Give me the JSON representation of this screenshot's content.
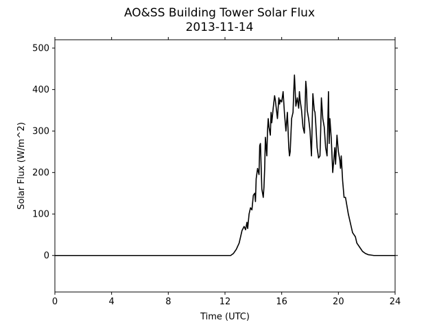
{
  "chart_data": {
    "type": "line",
    "title": "AO&SS Building Tower Solar Flux",
    "subtitle": "2013-11-14",
    "xlabel": "Time (UTC)",
    "ylabel": "Solar Flux (W/m^2)",
    "xlim": [
      0,
      24
    ],
    "ylim": [
      -88,
      520
    ],
    "xticks": [
      0,
      4,
      8,
      12,
      16,
      20,
      24
    ],
    "yticks": [
      0,
      100,
      200,
      300,
      400,
      500
    ],
    "grid": false,
    "legend": "none",
    "line_color": "#000000",
    "series": [
      {
        "x": [
          0,
          12.4,
          12.6,
          12.8,
          13.0,
          13.2,
          13.35,
          13.45,
          13.55,
          13.6,
          13.7,
          13.8,
          13.9,
          14.0,
          14.1,
          14.15,
          14.2,
          14.3,
          14.4,
          14.45,
          14.5,
          14.6,
          14.7,
          14.75,
          14.8,
          14.85,
          14.95,
          15.0,
          15.05,
          15.1,
          15.2,
          15.25,
          15.3,
          15.4,
          15.5,
          15.55,
          15.6,
          15.7,
          15.8,
          15.85,
          15.9,
          16.0,
          16.1,
          16.2,
          16.3,
          16.4,
          16.5,
          16.55,
          16.6,
          16.7,
          16.8,
          16.85,
          16.9,
          17.0,
          17.1,
          17.2,
          17.25,
          17.3,
          17.4,
          17.5,
          17.6,
          17.7,
          17.75,
          17.8,
          17.9,
          18.0,
          18.1,
          18.2,
          18.3,
          18.35,
          18.4,
          18.5,
          18.6,
          18.7,
          18.75,
          18.8,
          18.9,
          19.0,
          19.1,
          19.2,
          19.3,
          19.35,
          19.4,
          19.5,
          19.6,
          19.7,
          19.75,
          19.8,
          19.9,
          20.0,
          20.1,
          20.15,
          20.2,
          20.3,
          20.4,
          20.5,
          20.6,
          20.7,
          20.8,
          20.9,
          21.0,
          21.1,
          21.2,
          21.3,
          21.5,
          21.7,
          21.9,
          22.1,
          22.3,
          22.5,
          22.6,
          22.8,
          23.0,
          24.0
        ],
        "y": [
          0,
          0,
          5,
          15,
          30,
          60,
          70,
          62,
          80,
          65,
          100,
          115,
          110,
          145,
          150,
          130,
          185,
          210,
          195,
          265,
          270,
          160,
          140,
          165,
          210,
          285,
          240,
          300,
          330,
          310,
          290,
          345,
          320,
          355,
          385,
          375,
          360,
          330,
          380,
          365,
          375,
          370,
          395,
          340,
          300,
          345,
          260,
          240,
          250,
          330,
          345,
          395,
          435,
          360,
          380,
          355,
          395,
          375,
          350,
          310,
          295,
          420,
          400,
          350,
          330,
          300,
          240,
          390,
          350,
          345,
          320,
          260,
          235,
          240,
          300,
          380,
          330,
          310,
          260,
          240,
          395,
          270,
          330,
          280,
          200,
          240,
          260,
          220,
          290,
          250,
          230,
          210,
          240,
          180,
          140,
          140,
          120,
          100,
          85,
          70,
          55,
          50,
          45,
          30,
          20,
          10,
          5,
          2,
          1,
          0,
          0,
          0,
          0,
          0
        ]
      }
    ]
  }
}
